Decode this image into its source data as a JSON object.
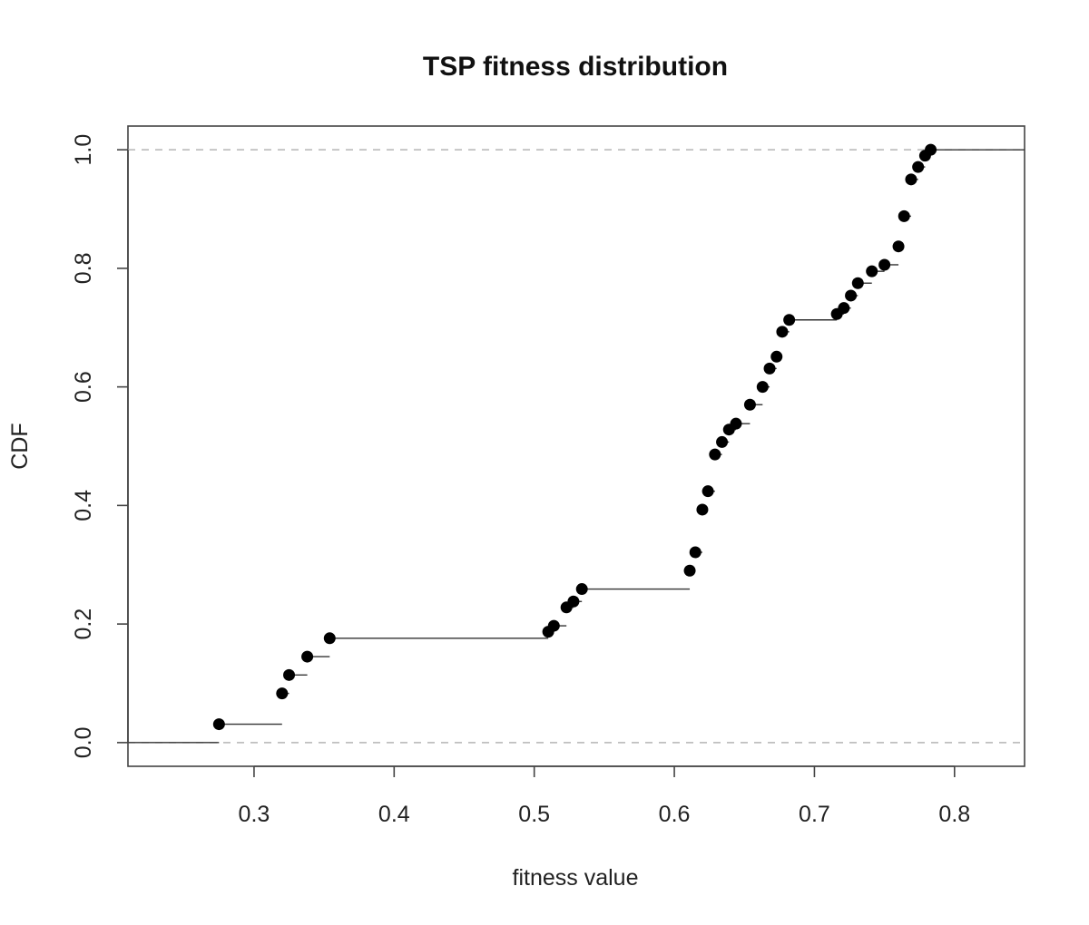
{
  "chart_data": {
    "type": "scatter",
    "title": "TSP fitness distribution",
    "xlabel": "fitness value",
    "ylabel": "CDF",
    "xlim": [
      0.21,
      0.85
    ],
    "ylim": [
      -0.04,
      1.04
    ],
    "x_ticks": [
      "0.3",
      "0.4",
      "0.5",
      "0.6",
      "0.7",
      "0.8"
    ],
    "y_ticks": [
      "0.0",
      "0.2",
      "0.4",
      "0.6",
      "0.8",
      "1.0"
    ],
    "reference_lines": [
      0.0,
      1.0
    ],
    "grid": false,
    "x": [
      0.275,
      0.32,
      0.325,
      0.338,
      0.354,
      0.51,
      0.514,
      0.523,
      0.528,
      0.534,
      0.611,
      0.615,
      0.62,
      0.624,
      0.629,
      0.634,
      0.639,
      0.644,
      0.654,
      0.663,
      0.668,
      0.673,
      0.677,
      0.682,
      0.716,
      0.721,
      0.726,
      0.731,
      0.741,
      0.75,
      0.76,
      0.764,
      0.769,
      0.774,
      0.779,
      0.783
    ],
    "y": [
      0.031,
      0.083,
      0.114,
      0.145,
      0.176,
      0.187,
      0.197,
      0.228,
      0.238,
      0.259,
      0.29,
      0.321,
      0.393,
      0.424,
      0.486,
      0.507,
      0.528,
      0.538,
      0.57,
      0.6,
      0.631,
      0.651,
      0.693,
      0.713,
      0.723,
      0.733,
      0.754,
      0.775,
      0.795,
      0.806,
      0.837,
      0.888,
      0.95,
      0.971,
      0.99,
      1.0
    ]
  }
}
